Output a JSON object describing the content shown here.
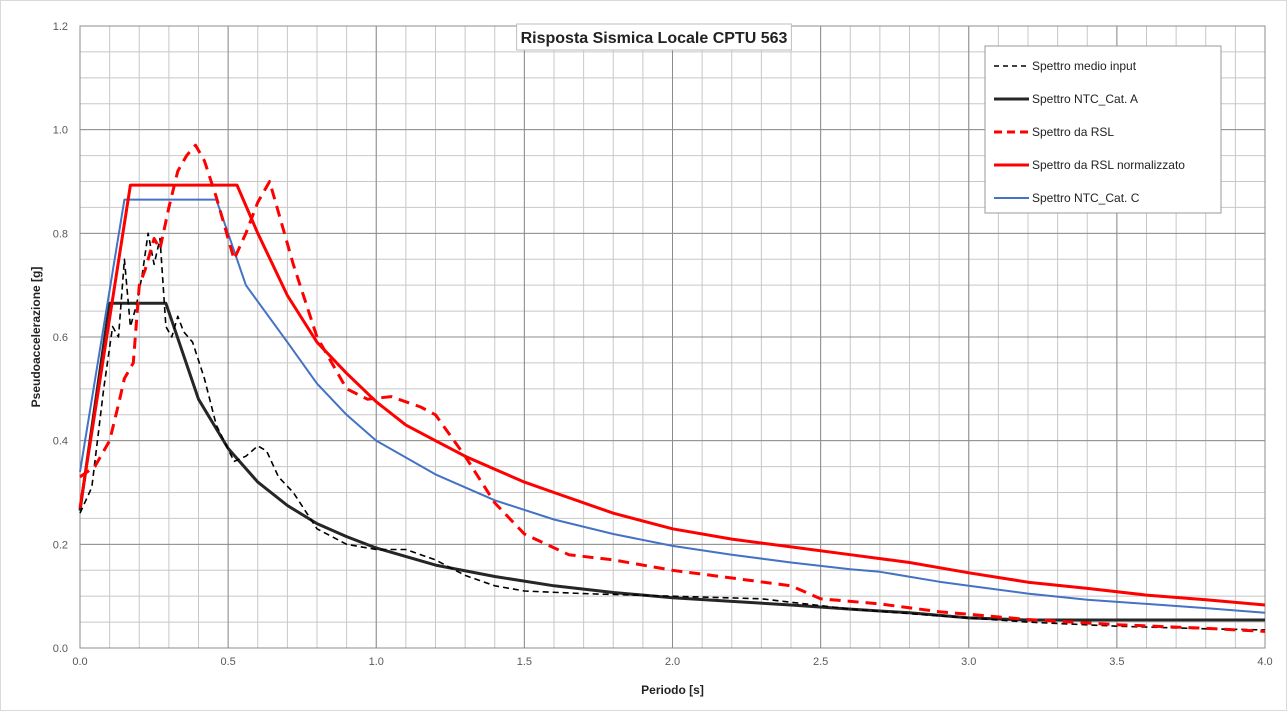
{
  "chart_data": {
    "type": "line",
    "title": "Risposta Sismica Locale CPTU 563",
    "xlabel": "Periodo [s]",
    "ylabel": "Pseudoaccelerazione  [g]",
    "xlim": [
      0,
      4
    ],
    "ylim": [
      0,
      1.2
    ],
    "x_ticks": [
      "0.0",
      "0.5",
      "1.0",
      "1.5",
      "2.0",
      "2.5",
      "3.0",
      "3.5",
      "4.0"
    ],
    "y_ticks": [
      "0.0",
      "0.2",
      "0.4",
      "0.6",
      "0.8",
      "1.0",
      "1.2"
    ],
    "grid": true,
    "legend_position": "top-right",
    "series": [
      {
        "name": "Spettro medio input",
        "color": "#000000",
        "style": "dashed",
        "width": 1.6,
        "points": [
          [
            0,
            0.26
          ],
          [
            0.04,
            0.31
          ],
          [
            0.08,
            0.5
          ],
          [
            0.11,
            0.62
          ],
          [
            0.13,
            0.6
          ],
          [
            0.15,
            0.75
          ],
          [
            0.17,
            0.62
          ],
          [
            0.19,
            0.66
          ],
          [
            0.21,
            0.72
          ],
          [
            0.23,
            0.8
          ],
          [
            0.25,
            0.74
          ],
          [
            0.27,
            0.79
          ],
          [
            0.29,
            0.62
          ],
          [
            0.31,
            0.6
          ],
          [
            0.33,
            0.64
          ],
          [
            0.35,
            0.61
          ],
          [
            0.38,
            0.59
          ],
          [
            0.42,
            0.52
          ],
          [
            0.46,
            0.43
          ],
          [
            0.52,
            0.36
          ],
          [
            0.56,
            0.37
          ],
          [
            0.6,
            0.39
          ],
          [
            0.63,
            0.38
          ],
          [
            0.67,
            0.33
          ],
          [
            0.72,
            0.3
          ],
          [
            0.8,
            0.23
          ],
          [
            0.9,
            0.2
          ],
          [
            1.0,
            0.19
          ],
          [
            1.1,
            0.19
          ],
          [
            1.2,
            0.17
          ],
          [
            1.3,
            0.14
          ],
          [
            1.4,
            0.12
          ],
          [
            1.5,
            0.11
          ],
          [
            1.7,
            0.105
          ],
          [
            2.0,
            0.1
          ],
          [
            2.3,
            0.095
          ],
          [
            2.6,
            0.075
          ],
          [
            2.9,
            0.062
          ],
          [
            3.2,
            0.05
          ],
          [
            3.5,
            0.042
          ],
          [
            3.8,
            0.037
          ],
          [
            4.0,
            0.035
          ]
        ]
      },
      {
        "name": "Spettro NTC_Cat. A",
        "color": "#262626",
        "style": "solid",
        "width": 3,
        "points": [
          [
            0,
            0.265
          ],
          [
            0.1,
            0.665
          ],
          [
            0.29,
            0.665
          ],
          [
            0.4,
            0.48
          ],
          [
            0.5,
            0.385
          ],
          [
            0.6,
            0.32
          ],
          [
            0.7,
            0.275
          ],
          [
            0.8,
            0.24
          ],
          [
            0.9,
            0.215
          ],
          [
            1.0,
            0.193
          ],
          [
            1.2,
            0.16
          ],
          [
            1.4,
            0.138
          ],
          [
            1.6,
            0.12
          ],
          [
            1.8,
            0.107
          ],
          [
            2.0,
            0.097
          ],
          [
            2.2,
            0.09
          ],
          [
            2.4,
            0.083
          ],
          [
            2.6,
            0.075
          ],
          [
            2.8,
            0.068
          ],
          [
            3.0,
            0.058
          ],
          [
            3.2,
            0.054
          ],
          [
            3.5,
            0.054
          ],
          [
            4.0,
            0.054
          ]
        ]
      },
      {
        "name": "Spettro da RSL",
        "color": "#ff0000",
        "style": "dashed",
        "width": 3,
        "points": [
          [
            0,
            0.33
          ],
          [
            0.05,
            0.35
          ],
          [
            0.1,
            0.4
          ],
          [
            0.13,
            0.47
          ],
          [
            0.15,
            0.52
          ],
          [
            0.18,
            0.55
          ],
          [
            0.2,
            0.7
          ],
          [
            0.22,
            0.73
          ],
          [
            0.25,
            0.79
          ],
          [
            0.27,
            0.77
          ],
          [
            0.3,
            0.85
          ],
          [
            0.33,
            0.92
          ],
          [
            0.36,
            0.95
          ],
          [
            0.39,
            0.97
          ],
          [
            0.42,
            0.94
          ],
          [
            0.46,
            0.87
          ],
          [
            0.52,
            0.75
          ],
          [
            0.56,
            0.8
          ],
          [
            0.6,
            0.86
          ],
          [
            0.64,
            0.9
          ],
          [
            0.68,
            0.82
          ],
          [
            0.72,
            0.74
          ],
          [
            0.8,
            0.6
          ],
          [
            0.9,
            0.5
          ],
          [
            0.97,
            0.48
          ],
          [
            1.05,
            0.485
          ],
          [
            1.15,
            0.465
          ],
          [
            1.2,
            0.45
          ],
          [
            1.3,
            0.37
          ],
          [
            1.4,
            0.28
          ],
          [
            1.5,
            0.22
          ],
          [
            1.65,
            0.18
          ],
          [
            1.8,
            0.17
          ],
          [
            2.0,
            0.15
          ],
          [
            2.2,
            0.135
          ],
          [
            2.4,
            0.12
          ],
          [
            2.5,
            0.095
          ],
          [
            2.7,
            0.085
          ],
          [
            2.9,
            0.07
          ],
          [
            3.2,
            0.055
          ],
          [
            3.5,
            0.045
          ],
          [
            3.8,
            0.038
          ],
          [
            4.0,
            0.032
          ]
        ]
      },
      {
        "name": "Spettro da RSL normalizzato",
        "color": "#ff0000",
        "style": "solid",
        "width": 3,
        "points": [
          [
            0,
            0.27
          ],
          [
            0.17,
            0.893
          ],
          [
            0.53,
            0.893
          ],
          [
            0.6,
            0.8
          ],
          [
            0.7,
            0.68
          ],
          [
            0.8,
            0.59
          ],
          [
            0.9,
            0.53
          ],
          [
            1.0,
            0.475
          ],
          [
            1.1,
            0.43
          ],
          [
            1.2,
            0.4
          ],
          [
            1.3,
            0.37
          ],
          [
            1.4,
            0.345
          ],
          [
            1.5,
            0.32
          ],
          [
            1.6,
            0.3
          ],
          [
            1.8,
            0.26
          ],
          [
            2.0,
            0.23
          ],
          [
            2.2,
            0.21
          ],
          [
            2.4,
            0.195
          ],
          [
            2.6,
            0.18
          ],
          [
            2.8,
            0.165
          ],
          [
            3.0,
            0.145
          ],
          [
            3.2,
            0.127
          ],
          [
            3.4,
            0.115
          ],
          [
            3.6,
            0.102
          ],
          [
            3.8,
            0.093
          ],
          [
            4.0,
            0.083
          ]
        ]
      },
      {
        "name": "Spettro NTC_Cat. C",
        "color": "#4472c4",
        "style": "solid",
        "width": 2,
        "points": [
          [
            0,
            0.34
          ],
          [
            0.15,
            0.865
          ],
          [
            0.46,
            0.865
          ],
          [
            0.5,
            0.8
          ],
          [
            0.56,
            0.7
          ],
          [
            0.7,
            0.59
          ],
          [
            0.8,
            0.51
          ],
          [
            0.9,
            0.45
          ],
          [
            1.0,
            0.4
          ],
          [
            1.2,
            0.335
          ],
          [
            1.4,
            0.285
          ],
          [
            1.6,
            0.248
          ],
          [
            1.8,
            0.22
          ],
          [
            2.0,
            0.197
          ],
          [
            2.2,
            0.18
          ],
          [
            2.4,
            0.165
          ],
          [
            2.6,
            0.152
          ],
          [
            2.7,
            0.147
          ],
          [
            2.9,
            0.128
          ],
          [
            3.0,
            0.12
          ],
          [
            3.2,
            0.105
          ],
          [
            3.4,
            0.093
          ],
          [
            3.6,
            0.085
          ],
          [
            3.8,
            0.077
          ],
          [
            4.0,
            0.068
          ]
        ]
      }
    ]
  }
}
